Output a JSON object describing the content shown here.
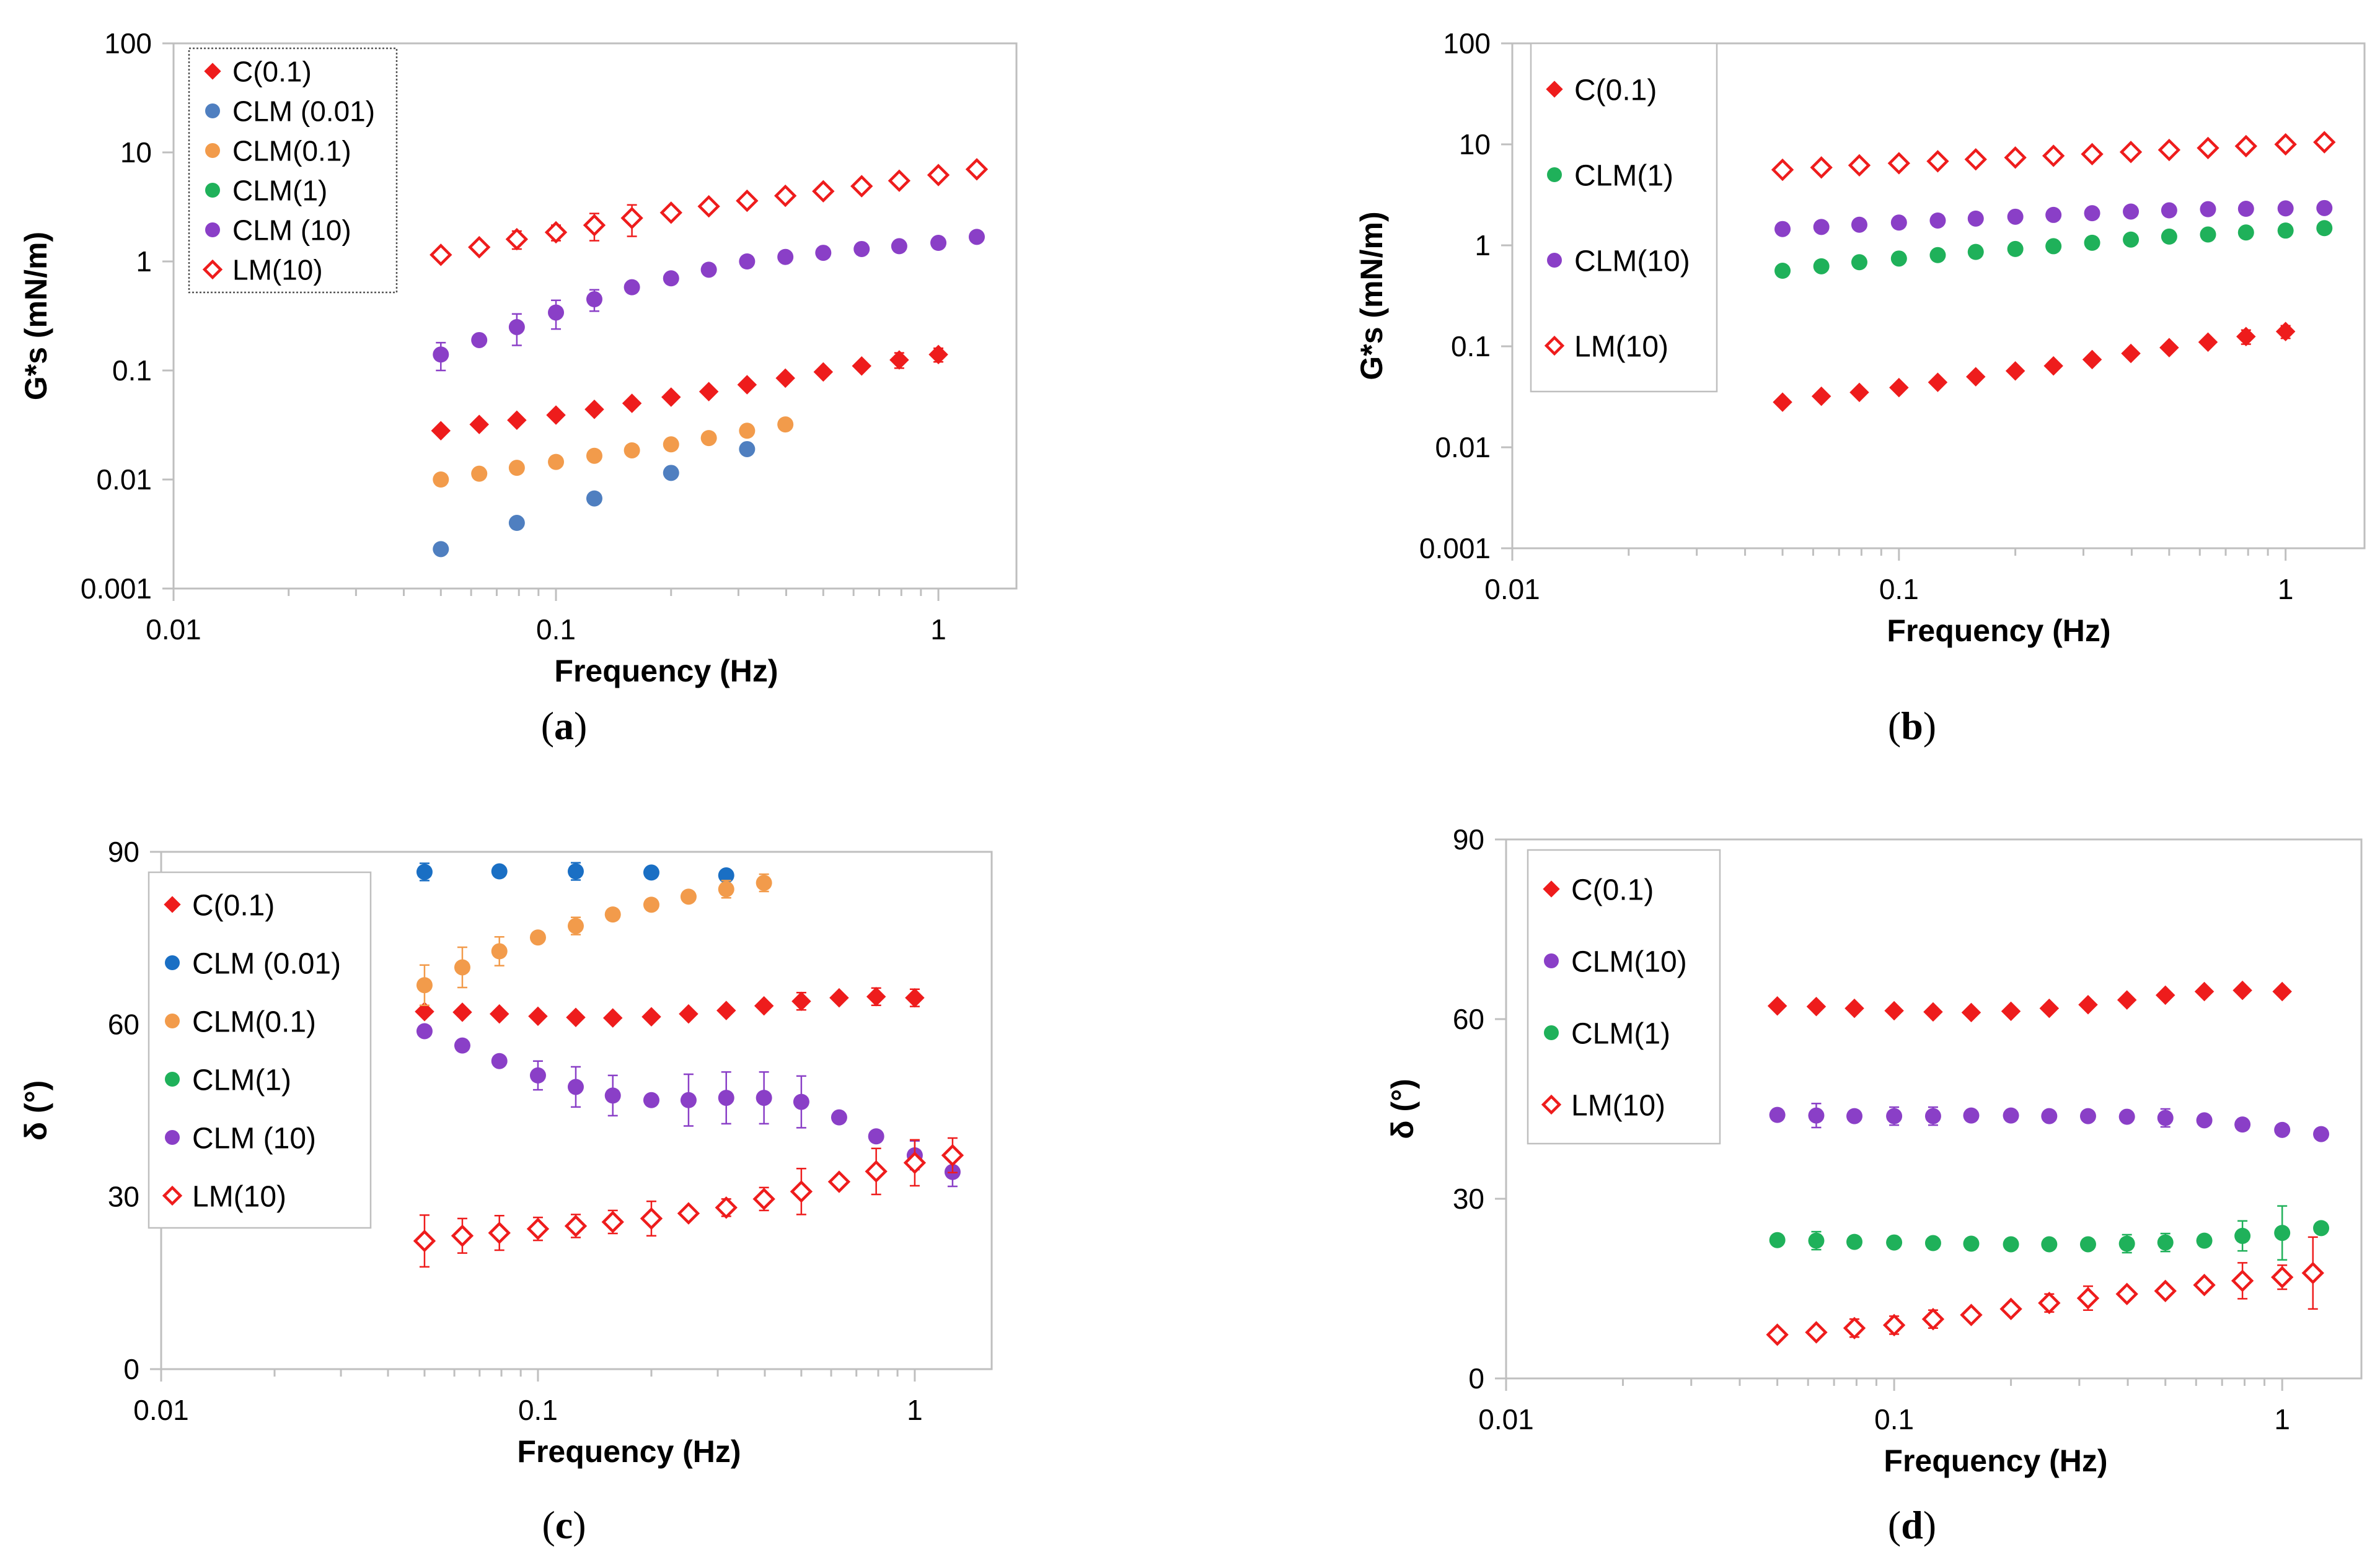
{
  "colors": {
    "C": "#ee1c1c",
    "CLM001_a": "#4f7fc0",
    "CLM001_c": "#1a6fc4",
    "CLM01": "#f29b4b",
    "CLM1": "#1fb15a",
    "CLM10": "#8a3fc7",
    "LM10": "#ee1c1c"
  },
  "captions": {
    "a": "a",
    "b": "b",
    "c": "c",
    "d": "d"
  },
  "chart_data": [
    {
      "id": "a",
      "type": "scatter",
      "xscale": "log",
      "yscale": "log",
      "xlim": [
        0.01,
        1.6
      ],
      "ylim": [
        0.001,
        100
      ],
      "xticks": [
        "0.01",
        "0.1",
        "1"
      ],
      "yticks": [
        "0.001",
        "0.01",
        "0.1",
        "1",
        "10",
        "100"
      ],
      "xlabel": "Frequency (Hz)",
      "ylabel": "G*s (mN/m)",
      "legend_position": "top-left",
      "series": [
        {
          "name": "C(0.1)",
          "marker": "diamond",
          "color": "#ee1c1c",
          "x": [
            0.05,
            0.063,
            0.079,
            0.1,
            0.126,
            0.158,
            0.2,
            0.251,
            0.316,
            0.398,
            0.5,
            0.63,
            0.79,
            1.0
          ],
          "y": [
            0.028,
            0.032,
            0.035,
            0.039,
            0.044,
            0.05,
            0.057,
            0.064,
            0.074,
            0.085,
            0.097,
            0.11,
            0.125,
            0.14
          ],
          "err": [
            0,
            0,
            0,
            0,
            0,
            0,
            0,
            0,
            0,
            0,
            0,
            0,
            0.02,
            0.02
          ]
        },
        {
          "name": "CLM (0.01)",
          "marker": "circle",
          "color": "#4f7fc0",
          "x": [
            0.05,
            0.079,
            0.126,
            0.2,
            0.316
          ],
          "y": [
            0.0023,
            0.004,
            0.0067,
            0.0115,
            0.019
          ],
          "err": [
            0,
            0,
            0,
            0,
            0
          ]
        },
        {
          "name": "CLM(0.1)",
          "marker": "circle",
          "color": "#f29b4b",
          "x": [
            0.05,
            0.063,
            0.079,
            0.1,
            0.126,
            0.158,
            0.2,
            0.251,
            0.316,
            0.398
          ],
          "y": [
            0.01,
            0.0113,
            0.0128,
            0.0145,
            0.0165,
            0.0185,
            0.021,
            0.024,
            0.028,
            0.032
          ],
          "err": [
            0,
            0,
            0,
            0,
            0,
            0,
            0,
            0,
            0,
            0
          ]
        },
        {
          "name": "CLM(1)",
          "marker": "circle",
          "color": "#1fb15a",
          "x": [],
          "y": [],
          "err": []
        },
        {
          "name": "CLM (10)",
          "marker": "circle",
          "color": "#8a3fc7",
          "x": [
            0.05,
            0.063,
            0.079,
            0.1,
            0.126,
            0.158,
            0.2,
            0.251,
            0.316,
            0.398,
            0.5,
            0.63,
            0.79,
            1.0,
            1.26
          ],
          "y": [
            0.14,
            0.19,
            0.25,
            0.34,
            0.45,
            0.58,
            0.7,
            0.84,
            1.0,
            1.1,
            1.2,
            1.3,
            1.38,
            1.48,
            1.68
          ],
          "err": [
            0.04,
            0,
            0.08,
            0.1,
            0.1,
            0,
            0,
            0,
            0,
            0,
            0,
            0,
            0,
            0,
            0
          ]
        },
        {
          "name": "LM(10)",
          "marker": "diamond-open",
          "color": "#ee1c1c",
          "x": [
            0.05,
            0.063,
            0.079,
            0.1,
            0.126,
            0.158,
            0.2,
            0.251,
            0.316,
            0.398,
            0.5,
            0.63,
            0.79,
            1.0,
            1.26
          ],
          "y": [
            1.15,
            1.35,
            1.6,
            1.85,
            2.15,
            2.5,
            2.8,
            3.2,
            3.6,
            4.0,
            4.4,
            4.9,
            5.5,
            6.2,
            7.0
          ],
          "err": [
            0,
            0,
            0.3,
            0.3,
            0.6,
            0.8,
            0,
            0,
            0,
            0,
            0,
            0,
            0,
            0,
            0
          ]
        }
      ]
    },
    {
      "id": "b",
      "type": "scatter",
      "xscale": "log",
      "yscale": "log",
      "xlim": [
        0.01,
        1.6
      ],
      "ylim": [
        0.001,
        100
      ],
      "xticks": [
        "0.01",
        "0.1",
        "1"
      ],
      "yticks": [
        "0.001",
        "0.01",
        "0.1",
        "1",
        "10",
        "100"
      ],
      "xlabel": "Frequency (Hz)",
      "ylabel": "G*s (mN/m)",
      "legend_position": "top-left",
      "series": [
        {
          "name": "C(0.1)",
          "marker": "diamond",
          "color": "#ee1c1c",
          "x": [
            0.05,
            0.063,
            0.079,
            0.1,
            0.126,
            0.158,
            0.2,
            0.251,
            0.316,
            0.398,
            0.5,
            0.63,
            0.79,
            1.0
          ],
          "y": [
            0.028,
            0.032,
            0.035,
            0.039,
            0.044,
            0.05,
            0.057,
            0.064,
            0.074,
            0.085,
            0.097,
            0.11,
            0.125,
            0.14
          ],
          "err": [
            0,
            0,
            0,
            0,
            0,
            0,
            0,
            0,
            0,
            0,
            0,
            0,
            0.02,
            0.02
          ]
        },
        {
          "name": "CLM(1)",
          "marker": "circle",
          "color": "#1fb15a",
          "x": [
            0.05,
            0.063,
            0.079,
            0.1,
            0.126,
            0.158,
            0.2,
            0.251,
            0.316,
            0.398,
            0.5,
            0.63,
            0.79,
            1.0,
            1.26
          ],
          "y": [
            0.56,
            0.62,
            0.68,
            0.74,
            0.8,
            0.86,
            0.92,
            0.98,
            1.06,
            1.14,
            1.22,
            1.28,
            1.34,
            1.4,
            1.48
          ],
          "err": [
            0,
            0,
            0,
            0,
            0,
            0,
            0,
            0,
            0,
            0,
            0,
            0,
            0,
            0,
            0
          ]
        },
        {
          "name": "CLM(10)",
          "marker": "circle",
          "color": "#8a3fc7",
          "x": [
            0.05,
            0.063,
            0.079,
            0.1,
            0.126,
            0.158,
            0.2,
            0.251,
            0.316,
            0.398,
            0.5,
            0.63,
            0.79,
            1.0,
            1.26
          ],
          "y": [
            1.45,
            1.52,
            1.6,
            1.68,
            1.76,
            1.84,
            1.92,
            2.0,
            2.08,
            2.16,
            2.22,
            2.28,
            2.3,
            2.32,
            2.34
          ],
          "err": [
            0,
            0,
            0,
            0,
            0,
            0,
            0,
            0,
            0,
            0,
            0,
            0,
            0,
            0,
            0
          ]
        },
        {
          "name": "LM(10)",
          "marker": "diamond-open",
          "color": "#ee1c1c",
          "x": [
            0.05,
            0.063,
            0.079,
            0.1,
            0.126,
            0.158,
            0.2,
            0.251,
            0.316,
            0.398,
            0.5,
            0.63,
            0.79,
            1.0,
            1.26
          ],
          "y": [
            5.6,
            5.9,
            6.2,
            6.5,
            6.8,
            7.1,
            7.4,
            7.7,
            8.0,
            8.4,
            8.8,
            9.2,
            9.6,
            10.0,
            10.5
          ],
          "err": [
            0,
            0,
            0,
            0,
            0,
            0,
            0,
            0,
            0,
            0,
            0,
            0,
            0,
            0,
            0
          ]
        }
      ]
    },
    {
      "id": "c",
      "type": "scatter",
      "xscale": "log",
      "yscale": "linear",
      "xlim": [
        0.01,
        1.6
      ],
      "ylim": [
        0,
        90
      ],
      "xticks": [
        "0.01",
        "0.1",
        "1"
      ],
      "yticks": [
        "0",
        "30",
        "60",
        "90"
      ],
      "xlabel": "Frequency (Hz)",
      "ylabel": "δ (°)",
      "legend_position": "top-left",
      "series": [
        {
          "name": "C(0.1)",
          "marker": "diamond",
          "color": "#ee1c1c",
          "x": [
            0.05,
            0.063,
            0.079,
            0.1,
            0.126,
            0.158,
            0.2,
            0.251,
            0.316,
            0.398,
            0.5,
            0.63,
            0.79,
            1.0
          ],
          "y": [
            62.2,
            62.1,
            61.8,
            61.4,
            61.2,
            61.1,
            61.3,
            61.8,
            62.4,
            63.2,
            64.0,
            64.6,
            64.8,
            64.6
          ],
          "err": [
            0,
            0,
            0,
            0,
            0,
            0,
            0,
            0,
            0,
            0,
            1.5,
            0,
            1.5,
            1.5
          ]
        },
        {
          "name": "CLM (0.01)",
          "marker": "circle",
          "color": "#1a6fc4",
          "x": [
            0.05,
            0.079,
            0.126,
            0.2,
            0.316
          ],
          "y": [
            86.5,
            86.6,
            86.6,
            86.4,
            85.9
          ],
          "err": [
            1.5,
            0,
            1.5,
            0,
            0
          ]
        },
        {
          "name": "CLM(0.1)",
          "marker": "circle",
          "color": "#f29b4b",
          "x": [
            0.05,
            0.063,
            0.079,
            0.1,
            0.126,
            0.158,
            0.2,
            0.251,
            0.316,
            0.398
          ],
          "y": [
            66.8,
            69.9,
            72.7,
            75.1,
            77.1,
            79.1,
            80.8,
            82.2,
            83.5,
            84.6
          ],
          "err": [
            3.5,
            3.5,
            2.5,
            0,
            1.5,
            0,
            1,
            0,
            1.5,
            1.5
          ]
        },
        {
          "name": "CLM(1)",
          "marker": "circle",
          "color": "#1fb15a",
          "x": [],
          "y": [],
          "err": []
        },
        {
          "name": "CLM (10)",
          "marker": "circle",
          "color": "#8a3fc7",
          "x": [
            0.05,
            0.063,
            0.079,
            0.1,
            0.126,
            0.158,
            0.2,
            0.251,
            0.316,
            0.398,
            0.5,
            0.63,
            0.79,
            1.0,
            1.26
          ],
          "y": [
            58.8,
            56.3,
            53.6,
            51.1,
            49.1,
            47.6,
            46.8,
            46.8,
            47.2,
            47.2,
            46.5,
            43.8,
            40.5,
            37.2,
            34.3
          ],
          "err": [
            0,
            0,
            0,
            2.5,
            3.5,
            3.5,
            0,
            4.5,
            4.5,
            4.5,
            4.5,
            0,
            0,
            2.5,
            2.5
          ]
        },
        {
          "name": "LM(10)",
          "marker": "diamond-open",
          "color": "#ee1c1c",
          "x": [
            0.05,
            0.063,
            0.079,
            0.1,
            0.126,
            0.158,
            0.2,
            0.251,
            0.316,
            0.398,
            0.5,
            0.63,
            0.79,
            1.0,
            1.26
          ],
          "y": [
            22.3,
            23.2,
            23.7,
            24.4,
            24.9,
            25.6,
            26.2,
            27.1,
            28.1,
            29.6,
            30.9,
            32.6,
            34.4,
            35.9,
            37.2
          ],
          "err": [
            4.5,
            3,
            3,
            2,
            2,
            2,
            3,
            0,
            1.5,
            2,
            4,
            0,
            4,
            4,
            3
          ]
        }
      ]
    },
    {
      "id": "d",
      "type": "scatter",
      "xscale": "log",
      "yscale": "linear",
      "xlim": [
        0.01,
        1.6
      ],
      "ylim": [
        0,
        90
      ],
      "xticks": [
        "0.01",
        "0.1",
        "1"
      ],
      "yticks": [
        "0",
        "30",
        "60",
        "90"
      ],
      "xlabel": "Frequency (Hz)",
      "ylabel": "δ (°)",
      "legend_position": "top-left",
      "series": [
        {
          "name": "C(0.1)",
          "marker": "diamond",
          "color": "#ee1c1c",
          "x": [
            0.05,
            0.063,
            0.079,
            0.1,
            0.126,
            0.158,
            0.2,
            0.251,
            0.316,
            0.398,
            0.5,
            0.63,
            0.79,
            1.0
          ],
          "y": [
            62.2,
            62.1,
            61.8,
            61.4,
            61.2,
            61.1,
            61.3,
            61.8,
            62.4,
            63.2,
            64.0,
            64.6,
            64.8,
            64.6
          ],
          "err": [
            0,
            0,
            0,
            0,
            0,
            0,
            0,
            0,
            0,
            0,
            0,
            0,
            0,
            0
          ]
        },
        {
          "name": "CLM(10)",
          "marker": "circle",
          "color": "#8a3fc7",
          "x": [
            0.05,
            0.063,
            0.079,
            0.1,
            0.126,
            0.158,
            0.2,
            0.251,
            0.316,
            0.398,
            0.5,
            0.63,
            0.79,
            1.0,
            1.26
          ],
          "y": [
            44.0,
            43.9,
            43.8,
            43.8,
            43.8,
            43.9,
            43.9,
            43.8,
            43.8,
            43.7,
            43.5,
            43.1,
            42.4,
            41.5,
            40.8
          ],
          "err": [
            0,
            2,
            0,
            1.5,
            1.5,
            0,
            0,
            0,
            0,
            0,
            1.5,
            0,
            0,
            0,
            0
          ]
        },
        {
          "name": "CLM(1)",
          "marker": "circle",
          "color": "#1fb15a",
          "x": [
            0.05,
            0.063,
            0.079,
            0.1,
            0.126,
            0.158,
            0.2,
            0.251,
            0.316,
            0.398,
            0.5,
            0.63,
            0.79,
            1.0,
            1.26
          ],
          "y": [
            23.1,
            23.0,
            22.8,
            22.7,
            22.6,
            22.5,
            22.4,
            22.4,
            22.4,
            22.5,
            22.7,
            23.0,
            23.8,
            24.3,
            25.1
          ],
          "err": [
            0,
            1.5,
            0,
            0,
            0,
            0,
            0,
            0,
            0,
            1.5,
            1.5,
            0,
            2.5,
            4.5,
            0
          ]
        },
        {
          "name": "LM(10)",
          "marker": "diamond-open",
          "color": "#ee1c1c",
          "x": [
            0.05,
            0.063,
            0.079,
            0.1,
            0.126,
            0.158,
            0.2,
            0.251,
            0.316,
            0.398,
            0.5,
            0.63,
            0.79,
            1.0,
            1.2
          ],
          "y": [
            7.3,
            7.7,
            8.4,
            8.9,
            9.9,
            10.6,
            11.6,
            12.6,
            13.4,
            14.1,
            14.6,
            15.6,
            16.3,
            16.9,
            17.6
          ],
          "err": [
            0,
            0,
            1.5,
            1.5,
            1.5,
            0,
            0,
            1.5,
            2,
            0,
            0,
            0,
            3,
            2,
            6
          ]
        }
      ]
    }
  ]
}
